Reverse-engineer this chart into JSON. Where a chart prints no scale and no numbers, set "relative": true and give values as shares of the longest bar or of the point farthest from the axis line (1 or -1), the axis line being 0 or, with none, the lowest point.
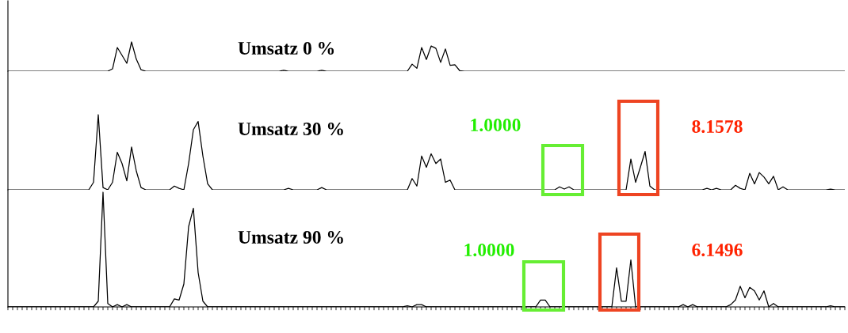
{
  "chart_data": [
    {
      "type": "line",
      "title": "Umsatz 0 %",
      "relative": true,
      "tick_labels": false,
      "grid": false,
      "legend": false,
      "categories": [
        null,
        null,
        null,
        null,
        null,
        null,
        null,
        null,
        null,
        null,
        null,
        null,
        null,
        null,
        null,
        null,
        null,
        null,
        null,
        null,
        null,
        null,
        null,
        null,
        null,
        null,
        null,
        null,
        null,
        null,
        null,
        null,
        null,
        null,
        null,
        null,
        null,
        null,
        null,
        null,
        null,
        null,
        null,
        null,
        null,
        null,
        null,
        null,
        null,
        null,
        null,
        null,
        null,
        null,
        null,
        null,
        null,
        null,
        null,
        null,
        null,
        null,
        null,
        null,
        null,
        null,
        null,
        null,
        null,
        null,
        null,
        null,
        null,
        null,
        null,
        null,
        null,
        null,
        null,
        null,
        null,
        null,
        null,
        null,
        null,
        null,
        null,
        null,
        null,
        null,
        null,
        null,
        null,
        null,
        null,
        null,
        null,
        null,
        null,
        null,
        null,
        null,
        null,
        null,
        null,
        null,
        null,
        null,
        null,
        null,
        null,
        null,
        null,
        null,
        null,
        null,
        null,
        null,
        null,
        null,
        null,
        null,
        null,
        null,
        null,
        null,
        null,
        null,
        null,
        null,
        null,
        null,
        null,
        null,
        null,
        null,
        null,
        null,
        null,
        null,
        null,
        null,
        null,
        null,
        null,
        null,
        null,
        null,
        null,
        null,
        null,
        null,
        null,
        null,
        null,
        null,
        null,
        null,
        null,
        null,
        null,
        null,
        null,
        null,
        null,
        null,
        null,
        null,
        null,
        null,
        null,
        null,
        null,
        null,
        null,
        null,
        null
      ],
      "series": [
        {
          "color": "#000000",
          "values": [
            0,
            0,
            0,
            0,
            0,
            0,
            0,
            0,
            0,
            0,
            0,
            0,
            0,
            0,
            0,
            0,
            0,
            0,
            0,
            0,
            0,
            0,
            0.08,
            0.81,
            0.54,
            0.27,
            1,
            0.41,
            0.05,
            0,
            0,
            0,
            0,
            0,
            0,
            0,
            0,
            0,
            0,
            0,
            0,
            0,
            0,
            0,
            0,
            0,
            0,
            0,
            0,
            0,
            0,
            0,
            0,
            0,
            0,
            0,
            0,
            0,
            0.03,
            0,
            0,
            0,
            0,
            0,
            0,
            0,
            0.03,
            0,
            0,
            0,
            0,
            0,
            0,
            0,
            0,
            0,
            0,
            0,
            0,
            0,
            0,
            0,
            0,
            0,
            0,
            0.24,
            0.1,
            0.81,
            0.4,
            0.86,
            0.78,
            0.3,
            0.76,
            0.2,
            0.22,
            0.02,
            0,
            0,
            0,
            0,
            0,
            0,
            0,
            0,
            0,
            0,
            0,
            0,
            0,
            0,
            0,
            0,
            0,
            0,
            0,
            0,
            0,
            0,
            0,
            0,
            0,
            0,
            0,
            0,
            0,
            0,
            0,
            0,
            0,
            0,
            0,
            0,
            0,
            0,
            0,
            0,
            0,
            0,
            0,
            0,
            0,
            0,
            0,
            0,
            0,
            0,
            0,
            0,
            0,
            0,
            0,
            0,
            0,
            0,
            0,
            0,
            0,
            0,
            0,
            0,
            0,
            0,
            0,
            0,
            0,
            0,
            0,
            0,
            0,
            0,
            0,
            0,
            0,
            0,
            0,
            0,
            0
          ]
        }
      ]
    },
    {
      "type": "line",
      "title": "Umsatz 30 %",
      "relative": true,
      "tick_labels": false,
      "grid": false,
      "legend": false,
      "annotations": [
        "1.0000",
        "8.1578"
      ],
      "categories": [
        null,
        null,
        null,
        null,
        null,
        null,
        null,
        null,
        null,
        null,
        null,
        null,
        null,
        null,
        null,
        null,
        null,
        null,
        null,
        null,
        null,
        null,
        null,
        null,
        null,
        null,
        null,
        null,
        null,
        null,
        null,
        null,
        null,
        null,
        null,
        null,
        null,
        null,
        null,
        null,
        null,
        null,
        null,
        null,
        null,
        null,
        null,
        null,
        null,
        null,
        null,
        null,
        null,
        null,
        null,
        null,
        null,
        null,
        null,
        null,
        null,
        null,
        null,
        null,
        null,
        null,
        null,
        null,
        null,
        null,
        null,
        null,
        null,
        null,
        null,
        null,
        null,
        null,
        null,
        null,
        null,
        null,
        null,
        null,
        null,
        null,
        null,
        null,
        null,
        null,
        null,
        null,
        null,
        null,
        null,
        null,
        null,
        null,
        null,
        null,
        null,
        null,
        null,
        null,
        null,
        null,
        null,
        null,
        null,
        null,
        null,
        null,
        null,
        null,
        null,
        null,
        null,
        null,
        null,
        null,
        null,
        null,
        null,
        null,
        null,
        null,
        null,
        null,
        null,
        null,
        null,
        null,
        null,
        null,
        null,
        null,
        null,
        null,
        null,
        null,
        null,
        null,
        null,
        null,
        null,
        null,
        null,
        null,
        null,
        null,
        null,
        null,
        null,
        null,
        null,
        null,
        null,
        null,
        null,
        null,
        null,
        null,
        null,
        null,
        null,
        null,
        null,
        null,
        null,
        null,
        null,
        null,
        null,
        null,
        null,
        null,
        null
      ],
      "series": [
        {
          "color": "#000000",
          "values": [
            0,
            0,
            0,
            0,
            0,
            0,
            0,
            0,
            0,
            0,
            0,
            0,
            0,
            0,
            0,
            0,
            0,
            0,
            0.1,
            1,
            0.03,
            0,
            0.1,
            0.5,
            0.35,
            0.12,
            0.57,
            0.25,
            0.03,
            0,
            0,
            0,
            0,
            0,
            0,
            0.05,
            0.02,
            0,
            0.35,
            0.8,
            0.91,
            0.45,
            0.08,
            0,
            0,
            0,
            0,
            0,
            0,
            0,
            0,
            0,
            0,
            0,
            0,
            0,
            0,
            0,
            0,
            0.02,
            0,
            0,
            0,
            0,
            0,
            0,
            0.03,
            0,
            0,
            0,
            0,
            0,
            0,
            0,
            0,
            0,
            0,
            0,
            0,
            0,
            0,
            0,
            0,
            0,
            0,
            0.15,
            0.05,
            0.45,
            0.3,
            0.48,
            0.35,
            0.41,
            0.1,
            0.13,
            0,
            0,
            0,
            0,
            0,
            0,
            0,
            0,
            0,
            0,
            0,
            0,
            0,
            0,
            0,
            0,
            0,
            0,
            0,
            0,
            0,
            0,
            0.04,
            0.01,
            0.04,
            0,
            0,
            0,
            0,
            0,
            0,
            0,
            0,
            0,
            0,
            0,
            0,
            0.41,
            0.1,
            0.3,
            0.51,
            0.05,
            0,
            0,
            0,
            0,
            0,
            0,
            0,
            0,
            0,
            0,
            0,
            0.02,
            0,
            0.02,
            0,
            0,
            0,
            0.06,
            0.02,
            0,
            0.22,
            0.08,
            0.23,
            0.17,
            0.08,
            0.18,
            0,
            0.04,
            0,
            0,
            0,
            0,
            0,
            0,
            0,
            0,
            0,
            0.01,
            0,
            0,
            0
          ]
        }
      ]
    },
    {
      "type": "line",
      "title": "Umsatz 90 %",
      "relative": true,
      "tick_labels": false,
      "grid": false,
      "legend": false,
      "annotations": [
        "1.0000",
        "6.1496"
      ],
      "categories": [
        null,
        null,
        null,
        null,
        null,
        null,
        null,
        null,
        null,
        null,
        null,
        null,
        null,
        null,
        null,
        null,
        null,
        null,
        null,
        null,
        null,
        null,
        null,
        null,
        null,
        null,
        null,
        null,
        null,
        null,
        null,
        null,
        null,
        null,
        null,
        null,
        null,
        null,
        null,
        null,
        null,
        null,
        null,
        null,
        null,
        null,
        null,
        null,
        null,
        null,
        null,
        null,
        null,
        null,
        null,
        null,
        null,
        null,
        null,
        null,
        null,
        null,
        null,
        null,
        null,
        null,
        null,
        null,
        null,
        null,
        null,
        null,
        null,
        null,
        null,
        null,
        null,
        null,
        null,
        null,
        null,
        null,
        null,
        null,
        null,
        null,
        null,
        null,
        null,
        null,
        null,
        null,
        null,
        null,
        null,
        null,
        null,
        null,
        null,
        null,
        null,
        null,
        null,
        null,
        null,
        null,
        null,
        null,
        null,
        null,
        null,
        null,
        null,
        null,
        null,
        null,
        null,
        null,
        null,
        null,
        null,
        null,
        null,
        null,
        null,
        null,
        null,
        null,
        null,
        null,
        null,
        null,
        null,
        null,
        null,
        null,
        null,
        null,
        null,
        null,
        null,
        null,
        null,
        null,
        null,
        null,
        null,
        null,
        null,
        null,
        null,
        null,
        null,
        null,
        null,
        null,
        null,
        null,
        null,
        null,
        null,
        null,
        null,
        null,
        null,
        null,
        null,
        null,
        null,
        null,
        null,
        null,
        null,
        null,
        null,
        null,
        null
      ],
      "series": [
        {
          "color": "#000000",
          "values": [
            0,
            0,
            0,
            0,
            0,
            0,
            0,
            0,
            0,
            0,
            0,
            0,
            0,
            0,
            0,
            0,
            0,
            0,
            0,
            0.05,
            1,
            0.03,
            0,
            0.02,
            0,
            0.02,
            0,
            0,
            0,
            0,
            0,
            0,
            0,
            0,
            0,
            0.07,
            0.06,
            0.2,
            0.7,
            0.86,
            0.3,
            0.05,
            0,
            0,
            0,
            0,
            0,
            0,
            0,
            0,
            0,
            0,
            0,
            0,
            0,
            0,
            0,
            0,
            0,
            0,
            0,
            0,
            0,
            0,
            0,
            0,
            0,
            0,
            0,
            0,
            0,
            0,
            0,
            0,
            0,
            0,
            0,
            0,
            0,
            0,
            0,
            0,
            0,
            0,
            0.01,
            0,
            0.02,
            0.02,
            0,
            0,
            0,
            0,
            0,
            0,
            0,
            0,
            0,
            0,
            0,
            0,
            0,
            0,
            0,
            0,
            0,
            0,
            0,
            0,
            0,
            0,
            0,
            0,
            0.06,
            0.06,
            0,
            0,
            0,
            0,
            0,
            0,
            0,
            0,
            0,
            0,
            0,
            0,
            0,
            0,
            0.34,
            0.05,
            0.05,
            0.41,
            0,
            0,
            0,
            0,
            0,
            0,
            0,
            0,
            0,
            0,
            0.02,
            0,
            0.02,
            0,
            0,
            0,
            0,
            0,
            0,
            0,
            0.02,
            0.06,
            0.18,
            0.08,
            0.17,
            0.14,
            0.06,
            0.14,
            0,
            0.03,
            0,
            0,
            0,
            0,
            0,
            0,
            0,
            0,
            0,
            0,
            0,
            0.01,
            0,
            0,
            0
          ]
        }
      ]
    }
  ]
}
